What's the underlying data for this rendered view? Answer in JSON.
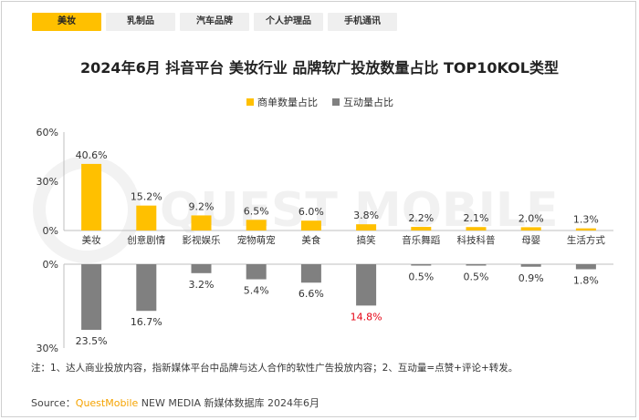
{
  "tabs": [
    {
      "label": "美妆",
      "active": true
    },
    {
      "label": "乳制品",
      "active": false
    },
    {
      "label": "汽车品牌",
      "active": false
    },
    {
      "label": "个人护理品",
      "active": false
    },
    {
      "label": "手机通讯",
      "active": false
    }
  ],
  "colors": {
    "accent": "#ffc000",
    "bar_top": "#ffc000",
    "bar_bottom": "#808080",
    "highlight_text": "#e60012"
  },
  "watermark": "QUEST MOBILE",
  "chart_data": {
    "type": "bar",
    "title": "2024年6月 抖音平台 美妆行业 品牌软广投放数量占比 TOP10KOL类型",
    "categories": [
      "美妆",
      "创意剧情",
      "影视娱乐",
      "宠物萌宠",
      "美食",
      "搞笑",
      "音乐舞蹈",
      "科技科普",
      "母婴",
      "生活方式"
    ],
    "series": [
      {
        "name": "商单数量占比",
        "values": [
          40.6,
          15.2,
          9.2,
          6.5,
          6.0,
          3.8,
          2.2,
          2.1,
          2.0,
          1.3
        ],
        "labels": [
          "40.6%",
          "15.2%",
          "9.2%",
          "6.5%",
          "6.0%",
          "3.8%",
          "2.2%",
          "2.1%",
          "2.0%",
          "1.3%"
        ],
        "ylim": [
          0,
          60
        ],
        "ticks": [
          "60%",
          "30%",
          "0%"
        ]
      },
      {
        "name": "互动量占比",
        "values": [
          23.5,
          16.7,
          3.2,
          5.4,
          6.6,
          14.8,
          0.5,
          0.5,
          0.9,
          1.8
        ],
        "labels": [
          "23.5%",
          "16.7%",
          "3.2%",
          "5.4%",
          "6.6%",
          "14.8%",
          "0.5%",
          "0.5%",
          "0.9%",
          "1.8%"
        ],
        "ylim": [
          0,
          30
        ],
        "ticks": [
          "0%",
          "30%"
        ],
        "highlight_index": 5
      }
    ],
    "legend_position": "top-center",
    "grid": false
  },
  "note": "注：1、达人商业投放内容，指新媒体平台中品牌与达人合作的软性广告投放内容；2、互动量=点赞+评论+转发。",
  "source": {
    "prefix": "Source：",
    "brand": "QuestMobile",
    "rest": " NEW MEDIA 新媒体数据库 2024年6月"
  }
}
